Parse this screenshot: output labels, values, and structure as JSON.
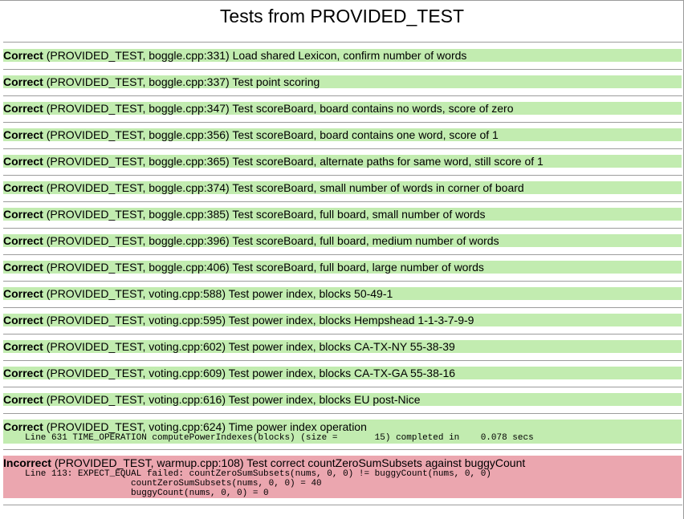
{
  "page": {
    "title": "Tests from PROVIDED_TEST"
  },
  "results": [
    {
      "status": "Correct",
      "message": "(PROVIDED_TEST, boggle.cpp:331) Load shared Lexicon, confirm number of words"
    },
    {
      "status": "Correct",
      "message": "(PROVIDED_TEST, boggle.cpp:337) Test point scoring"
    },
    {
      "status": "Correct",
      "message": "(PROVIDED_TEST, boggle.cpp:347) Test scoreBoard, board contains no words, score of zero"
    },
    {
      "status": "Correct",
      "message": "(PROVIDED_TEST, boggle.cpp:356) Test scoreBoard, board contains one word, score of 1"
    },
    {
      "status": "Correct",
      "message": "(PROVIDED_TEST, boggle.cpp:365) Test scoreBoard, alternate paths for same word, still score of 1"
    },
    {
      "status": "Correct",
      "message": "(PROVIDED_TEST, boggle.cpp:374) Test scoreBoard, small number of words in corner of board"
    },
    {
      "status": "Correct",
      "message": "(PROVIDED_TEST, boggle.cpp:385) Test scoreBoard, full board, small number of words"
    },
    {
      "status": "Correct",
      "message": "(PROVIDED_TEST, boggle.cpp:396) Test scoreBoard, full board, medium number of words"
    },
    {
      "status": "Correct",
      "message": "(PROVIDED_TEST, boggle.cpp:406) Test scoreBoard, full board, large number of words"
    },
    {
      "status": "Correct",
      "message": "(PROVIDED_TEST, voting.cpp:588) Test power index, blocks 50-49-1"
    },
    {
      "status": "Correct",
      "message": "(PROVIDED_TEST, voting.cpp:595) Test power index, blocks Hempshead 1-1-3-7-9-9"
    },
    {
      "status": "Correct",
      "message": "(PROVIDED_TEST, voting.cpp:602) Test power index, blocks CA-TX-NY 55-38-39"
    },
    {
      "status": "Correct",
      "message": "(PROVIDED_TEST, voting.cpp:609) Test power index, blocks CA-TX-GA 55-38-16"
    },
    {
      "status": "Correct",
      "message": "(PROVIDED_TEST, voting.cpp:616) Test power index, blocks EU post-Nice"
    },
    {
      "status": "Correct",
      "message": "(PROVIDED_TEST, voting.cpp:624) Time power index operation",
      "detail": "Line 631 TIME_OPERATION computePowerIndexes(blocks) (size =       15) completed in    0.078 secs"
    },
    {
      "status": "Incorrect",
      "message": "(PROVIDED_TEST, warmup.cpp:108) Test correct countZeroSumSubsets against buggyCount",
      "detail": "Line 113: EXPECT_EQUAL failed: countZeroSumSubsets(nums, 0, 0) != buggyCount(nums, 0, 0)\n                    countZeroSumSubsets(nums, 0, 0) = 40\n                    buggyCount(nums, 0, 0) = 0"
    }
  ],
  "colors": {
    "pass_background": "#c2ecb0",
    "fail_background": "#eba6af",
    "rule": "#9c9c9c"
  }
}
